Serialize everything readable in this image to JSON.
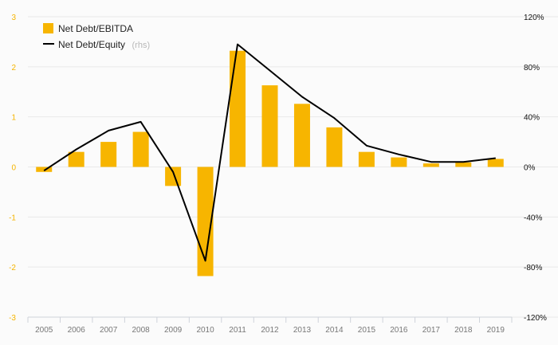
{
  "chart_data": {
    "type": "bar",
    "categories": [
      "2005",
      "2006",
      "2007",
      "2008",
      "2009",
      "2010",
      "2011",
      "2012",
      "2013",
      "2014",
      "2015",
      "2016",
      "2017",
      "2018",
      "2019"
    ],
    "series": [
      {
        "name": "Net Debt/EBITDA",
        "type": "bar",
        "axis": "left",
        "color": "#f7b500",
        "values": [
          -0.1,
          0.3,
          0.5,
          0.7,
          -0.38,
          -2.18,
          2.32,
          1.63,
          1.26,
          0.79,
          0.3,
          0.19,
          0.07,
          0.09,
          0.16
        ]
      },
      {
        "name": "Net Debt/Equity",
        "type": "line",
        "axis": "right",
        "color": "#000000",
        "values": [
          -3,
          14,
          29,
          36,
          -4,
          -75,
          98,
          77,
          56,
          39,
          17,
          10,
          4,
          4,
          7
        ]
      }
    ],
    "left_axis": {
      "range": [
        -3,
        3
      ],
      "ticks": [
        "3",
        "2",
        "1",
        "0",
        "-1",
        "-2",
        "-3"
      ]
    },
    "right_axis": {
      "range": [
        -120,
        120
      ],
      "ticks": [
        "120%",
        "80%",
        "40%",
        "0%",
        "-40%",
        "-80%",
        "-120%"
      ]
    },
    "legend": {
      "position": "top-left",
      "items": [
        {
          "label": "Net Debt/EBITDA",
          "suffix": ""
        },
        {
          "label": "Net Debt/Equity",
          "suffix": "(rhs)"
        }
      ]
    },
    "grid": true
  }
}
